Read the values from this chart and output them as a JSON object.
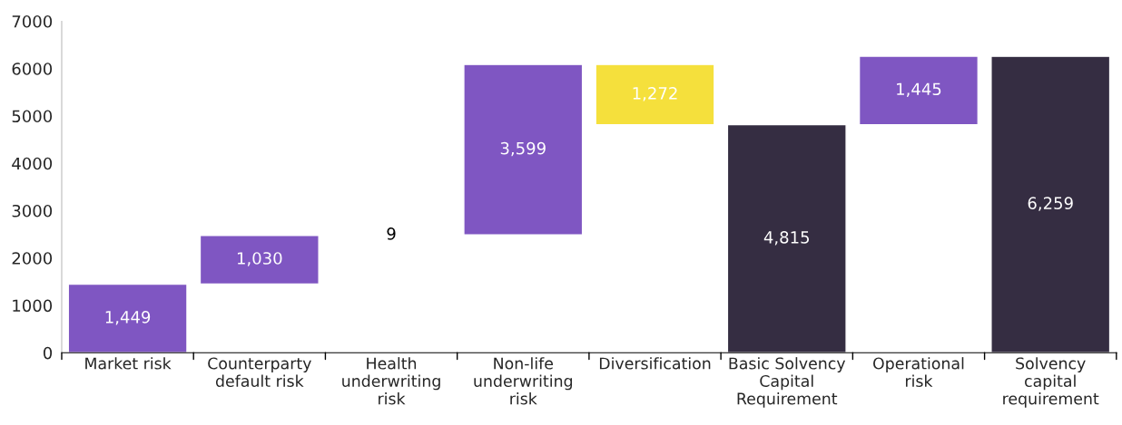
{
  "chart_data": {
    "type": "bar",
    "categories": [
      "Market risk",
      "Counterparty\ndefault risk",
      "Health\nunderwriting\nrisk",
      "Non-life\nunderwriting\nrisk",
      "Diversification",
      "Basic Solvency\nCapital\nRequirement",
      "Operational\nrisk",
      "Solvency\ncapital\nrequirement"
    ],
    "values": [
      1449,
      1030,
      9,
      3599,
      1272,
      4815,
      1445,
      6259
    ],
    "base": [
      0,
      1449,
      2479,
      2488,
      4815,
      0,
      4815,
      0
    ],
    "colors": [
      "#7f56c2",
      "#7f56c2",
      "#7f56c2",
      "#7f56c2",
      "#f5e03c",
      "#352d42",
      "#7f56c2",
      "#352d42"
    ],
    "value_labels": [
      "1,449",
      "1,030",
      "9",
      "3,599",
      "1,272",
      "4,815",
      "1,445",
      "6,259"
    ],
    "ylim": [
      0,
      7000
    ],
    "yticks": [
      0,
      1000,
      2000,
      3000,
      4000,
      5000,
      6000,
      7000
    ],
    "grid": false,
    "legend": false
  }
}
